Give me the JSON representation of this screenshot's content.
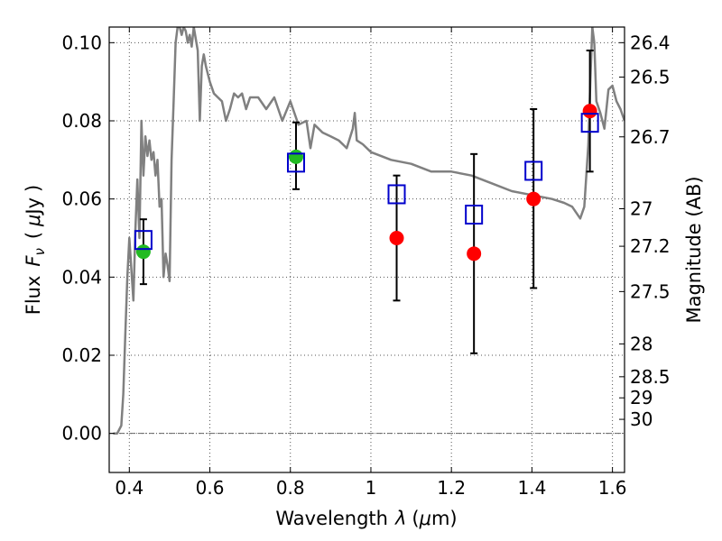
{
  "chart_data": {
    "type": "scatter",
    "xlabel_text": "Wavelength",
    "xlabel_symbol": "λ",
    "xlabel_unit_open": "(",
    "xlabel_unit_mu": "μ",
    "xlabel_unit_rest": "m)",
    "ylabel_text": "Flux",
    "ylabel_symbol": "F",
    "ylabel_symbol_sub": "ν",
    "ylabel_unit_open": "(",
    "ylabel_unit_mu": "μ",
    "ylabel_unit_rest": "Jy",
    "ylabel_unit_close": ")",
    "y2label": "Magnitude (AB)",
    "xlim": [
      0.35,
      1.63
    ],
    "ylim": [
      -0.01,
      0.104
    ],
    "xticks": [
      0.4,
      0.6,
      0.8,
      1.0,
      1.2,
      1.4,
      1.6
    ],
    "xtick_labels": [
      "0.4",
      "0.6",
      "0.8",
      "1",
      "1.2",
      "1.4",
      "1.6"
    ],
    "yticks": [
      0.0,
      0.02,
      0.04,
      0.06,
      0.08,
      0.1
    ],
    "ytick_labels": [
      "0.00",
      "0.02",
      "0.04",
      "0.06",
      "0.08",
      "0.10"
    ],
    "y2ticks": [
      {
        "label": "26.4",
        "flux": 0.1
      },
      {
        "label": "26.5",
        "flux": 0.0912
      },
      {
        "label": "26.7",
        "flux": 0.0759
      },
      {
        "label": "27",
        "flux": 0.0575
      },
      {
        "label": "27.2",
        "flux": 0.0479
      },
      {
        "label": "27.5",
        "flux": 0.0363
      },
      {
        "label": "28",
        "flux": 0.0229
      },
      {
        "label": "28.5",
        "flux": 0.0145
      },
      {
        "label": "29",
        "flux": 0.0091
      },
      {
        "label": "30",
        "flux": 0.0036
      }
    ],
    "grid": true,
    "colors": {
      "model": "#808080",
      "observed": "#ff0000",
      "observed_alt": "#22bb22",
      "model_photometry": "#0000cc",
      "errorbar": "#000000"
    },
    "model_sed": {
      "x": [
        0.36,
        0.37,
        0.38,
        0.385,
        0.39,
        0.395,
        0.4,
        0.41,
        0.415,
        0.42,
        0.425,
        0.43,
        0.435,
        0.44,
        0.445,
        0.45,
        0.455,
        0.46,
        0.465,
        0.47,
        0.475,
        0.48,
        0.485,
        0.49,
        0.495,
        0.5,
        0.505,
        0.51,
        0.515,
        0.52,
        0.525,
        0.53,
        0.535,
        0.54,
        0.545,
        0.55,
        0.555,
        0.56,
        0.565,
        0.57,
        0.575,
        0.58,
        0.585,
        0.59,
        0.6,
        0.61,
        0.62,
        0.63,
        0.64,
        0.65,
        0.66,
        0.67,
        0.68,
        0.69,
        0.7,
        0.72,
        0.74,
        0.76,
        0.78,
        0.8,
        0.82,
        0.84,
        0.85,
        0.86,
        0.88,
        0.9,
        0.92,
        0.94,
        0.955,
        0.96,
        0.965,
        0.98,
        1.0,
        1.05,
        1.1,
        1.15,
        1.2,
        1.25,
        1.3,
        1.35,
        1.4,
        1.45,
        1.48,
        1.5,
        1.52,
        1.53,
        1.54,
        1.545,
        1.55,
        1.555,
        1.56,
        1.57,
        1.58,
        1.59,
        1.6,
        1.61,
        1.62,
        1.63
      ],
      "y": [
        0.0,
        0.0,
        0.002,
        0.01,
        0.025,
        0.04,
        0.05,
        0.034,
        0.052,
        0.065,
        0.05,
        0.08,
        0.066,
        0.076,
        0.071,
        0.075,
        0.07,
        0.072,
        0.066,
        0.07,
        0.058,
        0.06,
        0.04,
        0.046,
        0.043,
        0.039,
        0.07,
        0.085,
        0.1,
        0.104,
        0.104,
        0.102,
        0.104,
        0.103,
        0.1,
        0.102,
        0.099,
        0.104,
        0.101,
        0.098,
        0.08,
        0.094,
        0.097,
        0.094,
        0.09,
        0.087,
        0.086,
        0.085,
        0.08,
        0.083,
        0.087,
        0.086,
        0.087,
        0.083,
        0.086,
        0.086,
        0.083,
        0.086,
        0.08,
        0.085,
        0.079,
        0.08,
        0.073,
        0.079,
        0.077,
        0.076,
        0.075,
        0.073,
        0.078,
        0.082,
        0.075,
        0.074,
        0.072,
        0.07,
        0.069,
        0.067,
        0.067,
        0.066,
        0.064,
        0.062,
        0.061,
        0.06,
        0.059,
        0.058,
        0.055,
        0.058,
        0.074,
        0.09,
        0.104,
        0.1,
        0.085,
        0.082,
        0.078,
        0.088,
        0.089,
        0.085,
        0.083,
        0.08
      ]
    },
    "observed": [
      {
        "x": 0.435,
        "y": 0.0465,
        "yerr_low": 0.0382,
        "yerr_high": 0.0548,
        "color": "observed_alt"
      },
      {
        "x": 0.814,
        "y": 0.0708,
        "yerr_low": 0.0625,
        "yerr_high": 0.0796,
        "color": "observed_alt"
      },
      {
        "x": 1.064,
        "y": 0.05,
        "yerr_low": 0.034,
        "yerr_high": 0.066,
        "color": "observed"
      },
      {
        "x": 1.256,
        "y": 0.046,
        "yerr_low": 0.0205,
        "yerr_high": 0.0715,
        "color": "observed"
      },
      {
        "x": 1.404,
        "y": 0.06,
        "yerr_low": 0.0372,
        "yerr_high": 0.083,
        "color": "observed"
      },
      {
        "x": 1.544,
        "y": 0.0825,
        "yerr_low": 0.067,
        "yerr_high": 0.098,
        "color": "observed"
      }
    ],
    "model_photometry": [
      {
        "x": 0.435,
        "y": 0.0495
      },
      {
        "x": 0.814,
        "y": 0.0693
      },
      {
        "x": 1.064,
        "y": 0.0612
      },
      {
        "x": 1.256,
        "y": 0.056
      },
      {
        "x": 1.404,
        "y": 0.0672
      },
      {
        "x": 1.544,
        "y": 0.0795
      }
    ]
  }
}
